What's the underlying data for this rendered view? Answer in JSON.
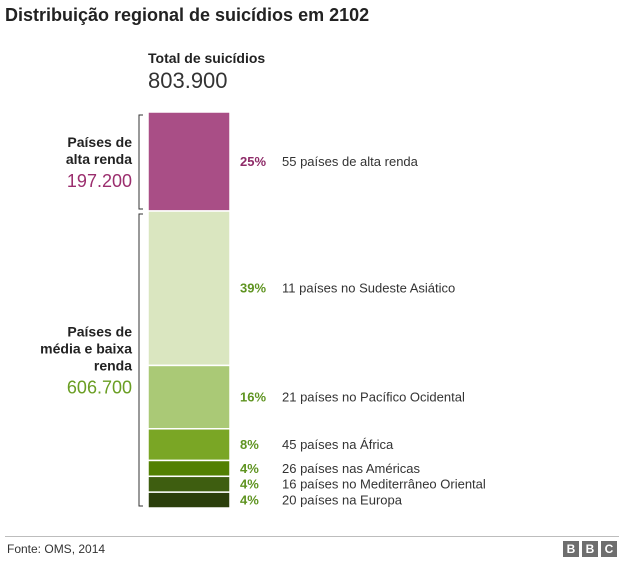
{
  "title": "Distribuição regional de suicídios em 2102",
  "total": {
    "label": "Total de suicídios",
    "value": "803.900"
  },
  "groups": [
    {
      "label_lines": [
        "Países de",
        "alta renda"
      ],
      "value": "197.200",
      "color": "#9b2e6e"
    },
    {
      "label_lines": [
        "Países de",
        "média e baixa",
        "renda"
      ],
      "value": "606.700",
      "color": "#6a9e23"
    }
  ],
  "chart_data": {
    "type": "bar",
    "title": "Distribuição regional de suicídios em 2102",
    "stacked": true,
    "total_value": 803900,
    "segments": [
      {
        "pct_label": "25%",
        "value": 25,
        "label": "55 países de alta renda",
        "group": 0,
        "color": "#a94e86",
        "pct_color": "#8e2b68"
      },
      {
        "pct_label": "39%",
        "value": 39,
        "label": "11 países no Sudeste Asiático",
        "group": 1,
        "color": "#dae6c0",
        "pct_color": "#5f9421"
      },
      {
        "pct_label": "16%",
        "value": 16,
        "label": "21 países no Pacífico Ocidental",
        "group": 1,
        "color": "#aac976",
        "pct_color": "#5f9421"
      },
      {
        "pct_label": "8%",
        "value": 8,
        "label": "45 países na África",
        "group": 1,
        "color": "#7aa625",
        "pct_color": "#5f9421"
      },
      {
        "pct_label": "4%",
        "value": 4,
        "label": "26 países nas Américas",
        "group": 1,
        "color": "#528002",
        "pct_color": "#5f9421"
      },
      {
        "pct_label": "4%",
        "value": 4,
        "label": "16 países no Mediterrâneo Oriental",
        "group": 1,
        "color": "#3e5e10",
        "pct_color": "#5f9421"
      },
      {
        "pct_label": "4%",
        "value": 4,
        "label": "20 países na Europa",
        "group": 1,
        "color": "#2b3f0c",
        "pct_color": "#5f9421"
      }
    ]
  },
  "footer": {
    "source": "Fonte: OMS, 2014",
    "logo_letters": [
      "B",
      "B",
      "C"
    ]
  }
}
